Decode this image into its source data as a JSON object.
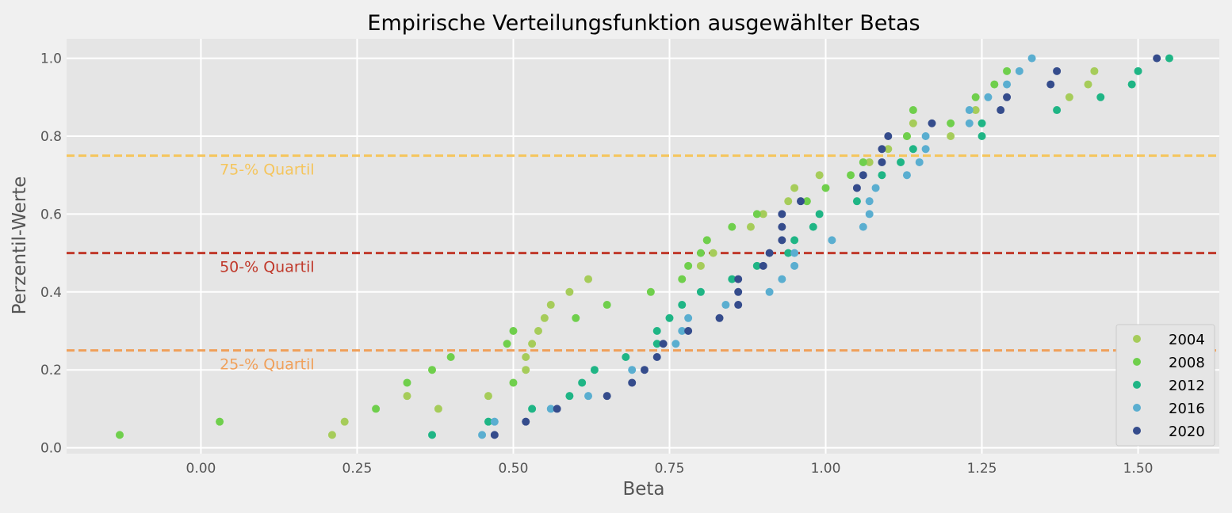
{
  "chart_data": {
    "type": "scatter",
    "title": "Empirische Verteilungsfunktion ausgewählter Betas",
    "xlabel": "Beta",
    "ylabel": "Perzentil-Werte",
    "xlim": [
      -0.215,
      1.63
    ],
    "ylim": [
      -0.015,
      1.05
    ],
    "xticks": [
      0.0,
      0.25,
      0.5,
      0.75,
      1.0,
      1.25,
      1.5
    ],
    "xtick_labels": [
      "0.00",
      "0.25",
      "0.50",
      "0.75",
      "1.00",
      "1.25",
      "1.50"
    ],
    "yticks": [
      0.0,
      0.2,
      0.4,
      0.6,
      0.8,
      1.0
    ],
    "ytick_labels": [
      "0.0",
      "0.2",
      "0.4",
      "0.6",
      "0.8",
      "1.0"
    ],
    "grid": true,
    "legend_position": "bottom-right",
    "reference_lines": [
      {
        "y": 0.75,
        "label": "75-% Quartil",
        "color": "#f5c55c"
      },
      {
        "y": 0.5,
        "label": "50-% Quartil",
        "color": "#c0392b"
      },
      {
        "y": 0.25,
        "label": "25-% Quartil",
        "color": "#f0a05a"
      }
    ],
    "series": [
      {
        "name": "2004",
        "color": "#a6cc5a",
        "points": [
          [
            0.21,
            0.033
          ],
          [
            0.23,
            0.067
          ],
          [
            0.38,
            0.1
          ],
          [
            0.33,
            0.133
          ],
          [
            0.46,
            0.133
          ],
          [
            0.52,
            0.2
          ],
          [
            0.53,
            0.267
          ],
          [
            0.52,
            0.233
          ],
          [
            0.54,
            0.3
          ],
          [
            0.55,
            0.333
          ],
          [
            0.56,
            0.367
          ],
          [
            0.59,
            0.4
          ],
          [
            0.62,
            0.433
          ],
          [
            0.8,
            0.467
          ],
          [
            0.82,
            0.5
          ],
          [
            0.81,
            0.533
          ],
          [
            0.88,
            0.567
          ],
          [
            0.9,
            0.6
          ],
          [
            0.94,
            0.633
          ],
          [
            0.95,
            0.667
          ],
          [
            0.99,
            0.7
          ],
          [
            1.07,
            0.733
          ],
          [
            1.1,
            0.767
          ],
          [
            1.2,
            0.8
          ],
          [
            1.13,
            0.8
          ],
          [
            1.14,
            0.833
          ],
          [
            1.24,
            0.867
          ],
          [
            1.39,
            0.9
          ],
          [
            1.42,
            0.933
          ],
          [
            1.43,
            0.967
          ]
        ]
      },
      {
        "name": "2008",
        "color": "#6fcf4c",
        "points": [
          [
            -0.13,
            0.033
          ],
          [
            0.03,
            0.067
          ],
          [
            0.28,
            0.1
          ],
          [
            0.33,
            0.167
          ],
          [
            0.37,
            0.2
          ],
          [
            0.4,
            0.233
          ],
          [
            0.49,
            0.267
          ],
          [
            0.5,
            0.3
          ],
          [
            0.6,
            0.333
          ],
          [
            0.65,
            0.367
          ],
          [
            0.5,
            0.167
          ],
          [
            0.72,
            0.4
          ],
          [
            0.77,
            0.433
          ],
          [
            0.78,
            0.467
          ],
          [
            0.81,
            0.533
          ],
          [
            0.85,
            0.567
          ],
          [
            0.89,
            0.6
          ],
          [
            0.97,
            0.633
          ],
          [
            1.0,
            0.667
          ],
          [
            1.04,
            0.7
          ],
          [
            1.06,
            0.733
          ],
          [
            1.13,
            0.8
          ],
          [
            1.2,
            0.833
          ],
          [
            1.14,
            0.867
          ],
          [
            1.24,
            0.9
          ],
          [
            1.27,
            0.933
          ],
          [
            1.29,
            0.967
          ],
          [
            0.8,
            0.5
          ]
        ]
      },
      {
        "name": "2012",
        "color": "#1fb585",
        "points": [
          [
            0.37,
            0.033
          ],
          [
            0.46,
            0.067
          ],
          [
            0.53,
            0.1
          ],
          [
            0.59,
            0.133
          ],
          [
            0.61,
            0.167
          ],
          [
            0.63,
            0.2
          ],
          [
            0.68,
            0.233
          ],
          [
            0.73,
            0.267
          ],
          [
            0.73,
            0.3
          ],
          [
            0.75,
            0.333
          ],
          [
            0.77,
            0.367
          ],
          [
            0.8,
            0.4
          ],
          [
            0.85,
            0.433
          ],
          [
            0.89,
            0.467
          ],
          [
            0.94,
            0.5
          ],
          [
            0.95,
            0.533
          ],
          [
            0.98,
            0.567
          ],
          [
            0.99,
            0.6
          ],
          [
            1.05,
            0.633
          ],
          [
            1.09,
            0.7
          ],
          [
            1.12,
            0.733
          ],
          [
            1.14,
            0.767
          ],
          [
            1.25,
            0.8
          ],
          [
            1.25,
            0.833
          ],
          [
            1.37,
            0.867
          ],
          [
            1.44,
            0.9
          ],
          [
            1.49,
            0.933
          ],
          [
            1.5,
            0.967
          ],
          [
            1.55,
            1.0
          ]
        ]
      },
      {
        "name": "2016",
        "color": "#5aaed0",
        "points": [
          [
            0.45,
            0.033
          ],
          [
            0.47,
            0.067
          ],
          [
            0.56,
            0.1
          ],
          [
            0.62,
            0.133
          ],
          [
            0.69,
            0.2
          ],
          [
            0.76,
            0.267
          ],
          [
            0.77,
            0.3
          ],
          [
            0.78,
            0.333
          ],
          [
            0.84,
            0.367
          ],
          [
            0.91,
            0.4
          ],
          [
            0.93,
            0.433
          ],
          [
            0.95,
            0.467
          ],
          [
            0.95,
            0.5
          ],
          [
            1.01,
            0.533
          ],
          [
            1.06,
            0.567
          ],
          [
            1.07,
            0.6
          ],
          [
            1.07,
            0.633
          ],
          [
            1.08,
            0.667
          ],
          [
            1.13,
            0.7
          ],
          [
            1.15,
            0.733
          ],
          [
            1.16,
            0.767
          ],
          [
            1.16,
            0.8
          ],
          [
            1.23,
            0.833
          ],
          [
            1.23,
            0.867
          ],
          [
            1.26,
            0.9
          ],
          [
            1.29,
            0.933
          ],
          [
            1.31,
            0.967
          ],
          [
            1.33,
            1.0
          ]
        ]
      },
      {
        "name": "2020",
        "color": "#354c8c",
        "points": [
          [
            0.47,
            0.033
          ],
          [
            0.52,
            0.067
          ],
          [
            0.57,
            0.1
          ],
          [
            0.65,
            0.133
          ],
          [
            0.69,
            0.167
          ],
          [
            0.71,
            0.2
          ],
          [
            0.73,
            0.233
          ],
          [
            0.74,
            0.267
          ],
          [
            0.78,
            0.3
          ],
          [
            0.83,
            0.333
          ],
          [
            0.86,
            0.367
          ],
          [
            0.86,
            0.4
          ],
          [
            0.86,
            0.433
          ],
          [
            0.9,
            0.467
          ],
          [
            0.91,
            0.5
          ],
          [
            0.93,
            0.533
          ],
          [
            0.93,
            0.567
          ],
          [
            0.93,
            0.6
          ],
          [
            0.96,
            0.633
          ],
          [
            1.05,
            0.667
          ],
          [
            1.06,
            0.7
          ],
          [
            1.09,
            0.733
          ],
          [
            1.09,
            0.767
          ],
          [
            1.1,
            0.8
          ],
          [
            1.17,
            0.833
          ],
          [
            1.28,
            0.867
          ],
          [
            1.29,
            0.9
          ],
          [
            1.36,
            0.933
          ],
          [
            1.37,
            0.967
          ],
          [
            1.53,
            1.0
          ]
        ]
      }
    ]
  }
}
